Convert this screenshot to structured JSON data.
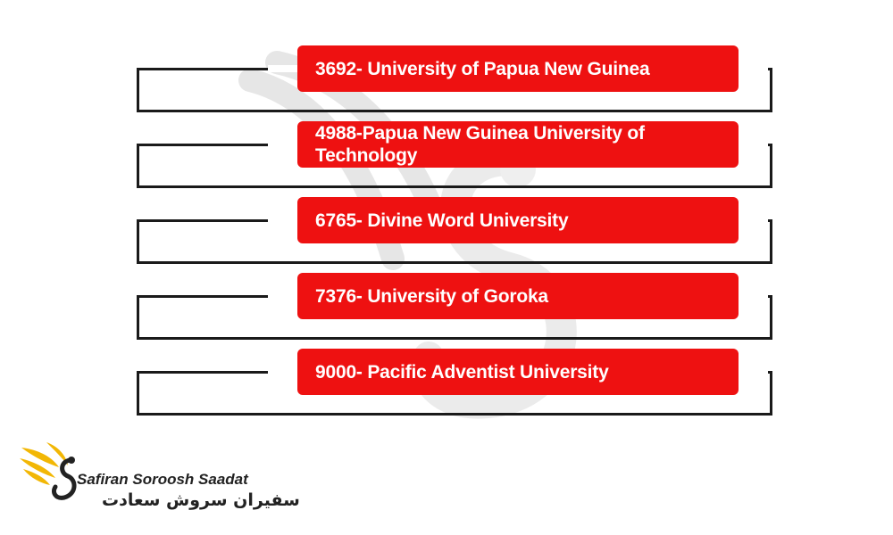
{
  "diagram": {
    "items": [
      {
        "label": "3692- University of Papua New Guinea"
      },
      {
        "label": "4988-Papua New Guinea University of Technology"
      },
      {
        "label": "6765- Divine Word University"
      },
      {
        "label": "7376- University of Goroka"
      },
      {
        "label": "9000- Pacific Adventist University"
      }
    ]
  },
  "logo": {
    "name_en": "Safiran Soroosh Saadat",
    "name_fa": "سفیران سروش سعادت",
    "icon": "bird-wing-icon",
    "colors": {
      "accent": "#f2b705",
      "dark": "#222222"
    }
  },
  "colors": {
    "box": "#ee1111",
    "bracket": "#1a1a1a"
  }
}
